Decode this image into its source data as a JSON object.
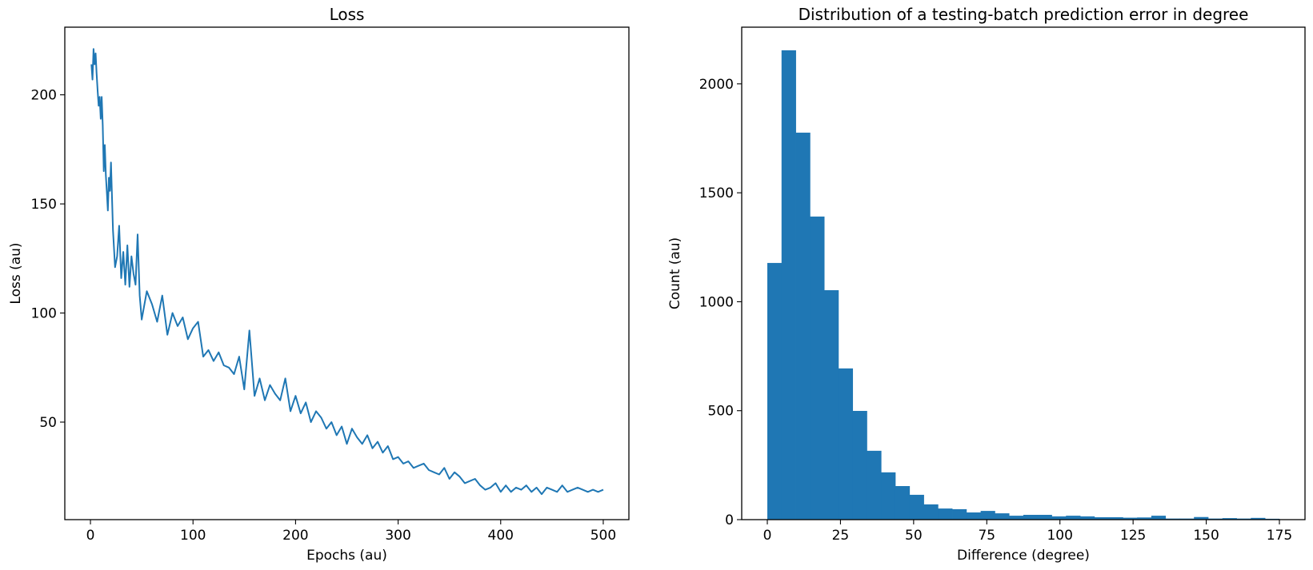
{
  "colors": {
    "series": "#1f77b4",
    "axes": "#000000",
    "background": "#ffffff"
  },
  "chart_data": [
    {
      "type": "line",
      "title": "Loss",
      "xlabel": "Epochs (au)",
      "ylabel": "Loss (au)",
      "xlim": [
        -25,
        525
      ],
      "ylim": [
        5.3,
        231
      ],
      "xticks": [
        0,
        100,
        200,
        300,
        400,
        500
      ],
      "xtick_labels": [
        "0",
        "100",
        "200",
        "300",
        "400",
        "500"
      ],
      "yticks": [
        50,
        100,
        150,
        200
      ],
      "ytick_labels": [
        "50",
        "100",
        "150",
        "200"
      ],
      "grid": false,
      "legend": null,
      "series": [
        {
          "name": "loss",
          "x": [
            1,
            2,
            3,
            4,
            5,
            6,
            7,
            8,
            9,
            10,
            11,
            12,
            13,
            14,
            15,
            16,
            17,
            18,
            19,
            20,
            22,
            24,
            26,
            28,
            30,
            32,
            34,
            36,
            38,
            40,
            42,
            44,
            46,
            48,
            50,
            55,
            60,
            65,
            70,
            75,
            80,
            85,
            90,
            95,
            100,
            105,
            110,
            115,
            120,
            125,
            130,
            135,
            140,
            145,
            150,
            155,
            160,
            165,
            170,
            175,
            180,
            185,
            190,
            195,
            200,
            205,
            210,
            215,
            220,
            225,
            230,
            235,
            240,
            245,
            250,
            255,
            260,
            265,
            270,
            275,
            280,
            285,
            290,
            295,
            300,
            305,
            310,
            315,
            320,
            325,
            330,
            335,
            340,
            345,
            350,
            355,
            360,
            365,
            370,
            375,
            380,
            385,
            390,
            395,
            400,
            405,
            410,
            415,
            420,
            425,
            430,
            435,
            440,
            445,
            450,
            455,
            460,
            465,
            470,
            475,
            480,
            485,
            490,
            495,
            500
          ],
          "y": [
            214,
            207,
            221,
            214,
            219,
            210,
            202,
            195,
            199,
            189,
            199,
            186,
            165,
            177,
            163,
            155,
            147,
            162,
            156,
            169,
            138,
            121,
            126,
            140,
            116,
            128,
            113,
            131,
            112,
            126,
            118,
            113,
            136,
            108,
            97,
            110,
            104,
            96,
            108,
            90,
            100,
            94,
            98,
            88,
            93,
            96,
            80,
            83,
            78,
            82,
            76,
            75,
            72,
            80,
            65,
            92,
            62,
            70,
            60,
            67,
            63,
            60,
            70,
            55,
            62,
            54,
            59,
            50,
            55,
            52,
            47,
            50,
            44,
            48,
            40,
            47,
            43,
            40,
            44,
            38,
            41,
            36,
            39,
            33,
            34,
            31,
            32,
            29,
            30,
            31,
            28,
            27,
            26,
            29,
            24,
            27,
            25,
            22,
            23,
            24,
            21,
            19,
            20,
            22,
            18,
            21,
            18,
            20,
            19,
            21,
            18,
            20,
            17,
            20,
            19,
            18,
            21,
            18,
            19,
            20,
            19,
            18,
            19,
            18,
            19
          ]
        }
      ]
    },
    {
      "type": "bar",
      "subtype": "histogram",
      "title": "Distribution of a testing-batch prediction error in degree",
      "xlabel": "Difference (degree)",
      "ylabel": "Count (au)",
      "xlim": [
        -8.75,
        183.75
      ],
      "ylim": [
        0,
        2260
      ],
      "xticks": [
        0,
        25,
        50,
        75,
        100,
        125,
        150,
        175
      ],
      "xtick_labels": [
        "0",
        "25",
        "50",
        "75",
        "100",
        "125",
        "150",
        "175"
      ],
      "yticks": [
        0,
        500,
        1000,
        1500,
        2000
      ],
      "ytick_labels": [
        "0",
        "500",
        "1000",
        "1500",
        "2000"
      ],
      "grid": false,
      "legend": null,
      "bin_start": 0,
      "bin_width": 4.86,
      "values": [
        1178,
        2154,
        1776,
        1391,
        1053,
        694,
        499,
        316,
        217,
        154,
        114,
        70,
        51,
        48,
        33,
        40,
        29,
        18,
        22,
        22,
        15,
        18,
        15,
        11,
        11,
        9,
        10,
        18,
        5,
        5,
        12,
        5,
        7,
        5,
        8,
        4
      ]
    }
  ]
}
